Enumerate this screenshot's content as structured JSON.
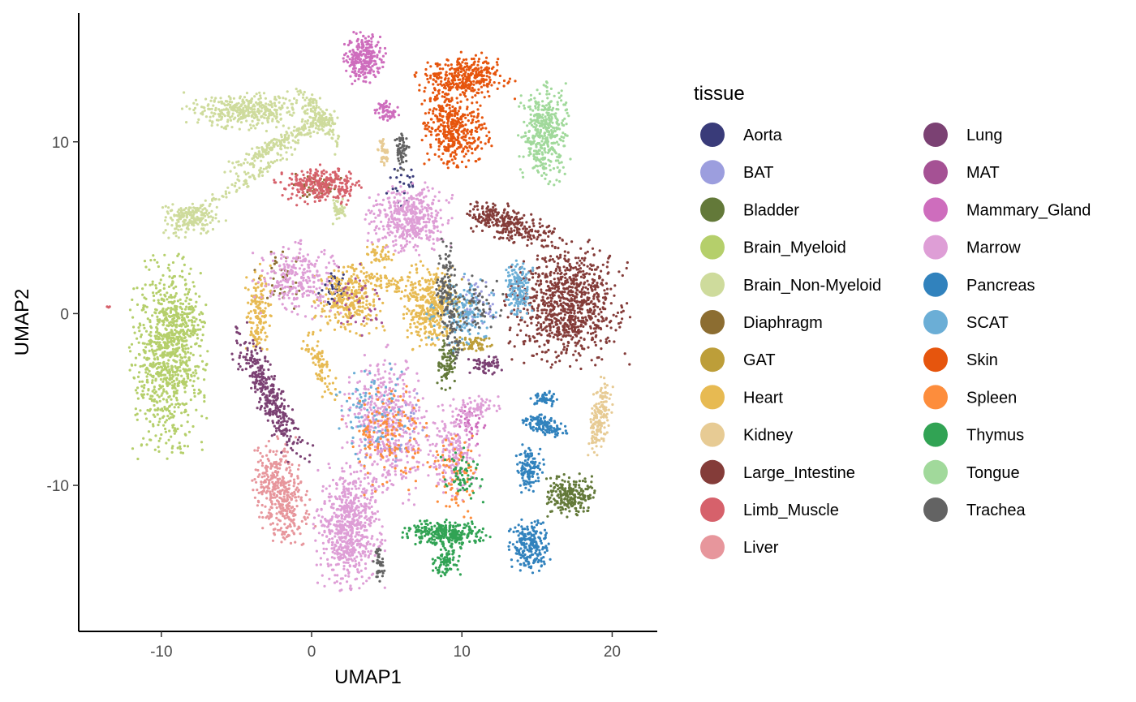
{
  "chart_data": {
    "type": "scatter",
    "title": "",
    "xlabel": "UMAP1",
    "ylabel": "UMAP2",
    "xlim": [
      -15.5,
      23
    ],
    "ylim": [
      -18.5,
      17.5
    ],
    "x_ticks": [
      -10,
      0,
      10,
      20
    ],
    "y_ticks": [
      -10,
      0,
      10
    ],
    "x_tick_labels": [
      "-10",
      "0",
      "10",
      "20"
    ],
    "y_tick_labels": [
      "-10",
      "0",
      "10"
    ],
    "grid": false,
    "legend": {
      "title": "tissue",
      "placement": "right",
      "columns": 2
    },
    "series": [
      {
        "name": "Aorta",
        "color": "#393b79",
        "clusters": [
          {
            "x": 1.5,
            "y": 1.5,
            "rx": 1.0,
            "ry": 1.2,
            "n": 40,
            "angle": 0
          },
          {
            "x": 6.0,
            "y": 7.5,
            "rx": 1.0,
            "ry": 1.2,
            "n": 25,
            "angle": 0
          }
        ]
      },
      {
        "name": "BAT",
        "color": "#9c9ede",
        "clusters": [
          {
            "x": 11.0,
            "y": 0.5,
            "rx": 1.5,
            "ry": 1.5,
            "n": 40,
            "angle": 0
          },
          {
            "x": 5.5,
            "y": -6.5,
            "rx": 2.0,
            "ry": 2.5,
            "n": 40,
            "angle": 0
          }
        ]
      },
      {
        "name": "Bladder",
        "color": "#637939",
        "clusters": [
          {
            "x": 17.2,
            "y": -10.6,
            "rx": 1.4,
            "ry": 1.1,
            "n": 220,
            "angle": 0
          },
          {
            "x": 9.0,
            "y": -3.0,
            "rx": 0.7,
            "ry": 1.2,
            "n": 80,
            "angle": 0
          }
        ]
      },
      {
        "name": "Brain_Myeloid",
        "color": "#b5cf6b",
        "clusters": [
          {
            "x": -9.5,
            "y": -2.5,
            "rx": 2.2,
            "ry": 5.0,
            "n": 900,
            "angle": 0
          },
          {
            "x": -8.5,
            "y": -0.5,
            "rx": 1.3,
            "ry": 1.2,
            "n": 80,
            "angle": 0
          }
        ]
      },
      {
        "name": "Brain_Non-Myeloid",
        "color": "#cedb9c",
        "clusters": [
          {
            "x": -4.5,
            "y": 11.8,
            "rx": 3.8,
            "ry": 1.0,
            "n": 350,
            "angle": 0
          },
          {
            "x": -8.0,
            "y": 5.6,
            "rx": 2.0,
            "ry": 1.0,
            "n": 200,
            "angle": 0
          },
          {
            "x": -2.0,
            "y": 10.0,
            "rx": 3.5,
            "ry": 0.5,
            "n": 200,
            "angle": 25
          },
          {
            "x": 0.5,
            "y": 11.5,
            "rx": 2.0,
            "ry": 0.6,
            "n": 150,
            "angle": -50
          },
          {
            "x": -4.0,
            "y": 8.0,
            "rx": 3.0,
            "ry": 0.4,
            "n": 80,
            "angle": 30
          },
          {
            "x": 1.8,
            "y": 6.0,
            "rx": 0.5,
            "ry": 0.8,
            "n": 40,
            "angle": 0
          }
        ]
      },
      {
        "name": "Diaphragm",
        "color": "#8c6d31",
        "clusters": [
          {
            "x": 0.2,
            "y": 7.5,
            "rx": 1.5,
            "ry": 0.7,
            "n": 50,
            "angle": 0
          },
          {
            "x": -2.0,
            "y": 2.0,
            "rx": 1.5,
            "ry": 1.5,
            "n": 40,
            "angle": 0
          }
        ]
      },
      {
        "name": "GAT",
        "color": "#bd9e39",
        "clusters": [
          {
            "x": 11.0,
            "y": -1.8,
            "rx": 1.2,
            "ry": 0.5,
            "n": 60,
            "angle": 0
          },
          {
            "x": 9.5,
            "y": 0.5,
            "rx": 1.2,
            "ry": 1.5,
            "n": 40,
            "angle": 0
          }
        ]
      },
      {
        "name": "Heart",
        "color": "#e7ba52",
        "clusters": [
          {
            "x": 7.8,
            "y": 0.5,
            "rx": 1.6,
            "ry": 2.2,
            "n": 350,
            "angle": 0
          },
          {
            "x": 2.5,
            "y": 0.8,
            "rx": 2.0,
            "ry": 1.8,
            "n": 300,
            "angle": 0
          },
          {
            "x": -3.5,
            "y": 0.0,
            "rx": 0.8,
            "ry": 2.5,
            "n": 150,
            "angle": 0
          },
          {
            "x": 0.5,
            "y": -3.0,
            "rx": 0.6,
            "ry": 2.0,
            "n": 80,
            "angle": 25
          },
          {
            "x": 4.5,
            "y": 3.5,
            "rx": 1.0,
            "ry": 0.5,
            "n": 40,
            "angle": 0
          },
          {
            "x": 5.0,
            "y": 1.8,
            "rx": 2.0,
            "ry": 0.5,
            "n": 60,
            "angle": -20
          }
        ]
      },
      {
        "name": "Kidney",
        "color": "#e7cb94",
        "clusters": [
          {
            "x": 19.2,
            "y": -6.0,
            "rx": 0.6,
            "ry": 2.0,
            "n": 160,
            "angle": -10
          },
          {
            "x": 4.8,
            "y": 9.5,
            "rx": 0.4,
            "ry": 0.8,
            "n": 40,
            "angle": 0
          }
        ]
      },
      {
        "name": "Large_Intestine",
        "color": "#843c39",
        "clusters": [
          {
            "x": 17.0,
            "y": 0.5,
            "rx": 3.5,
            "ry": 3.2,
            "n": 900,
            "angle": 0
          },
          {
            "x": 13.5,
            "y": 5.0,
            "rx": 3.0,
            "ry": 0.8,
            "n": 200,
            "angle": -10
          },
          {
            "x": 12.0,
            "y": 5.8,
            "rx": 1.5,
            "ry": 0.6,
            "n": 80,
            "angle": 0
          }
        ]
      },
      {
        "name": "Limb_Muscle",
        "color": "#d6616b",
        "clusters": [
          {
            "x": 0.5,
            "y": 7.5,
            "rx": 2.5,
            "ry": 1.0,
            "n": 280,
            "angle": 0
          },
          {
            "x": -13.5,
            "y": 0.4,
            "rx": 0.1,
            "ry": 0.1,
            "n": 3,
            "angle": 0
          }
        ]
      },
      {
        "name": "Liver",
        "color": "#e7969c",
        "clusters": [
          {
            "x": -2.0,
            "y": -10.5,
            "rx": 1.5,
            "ry": 2.8,
            "n": 400,
            "angle": 15
          }
        ]
      },
      {
        "name": "Lung",
        "color": "#7b4173",
        "clusters": [
          {
            "x": -2.8,
            "y": -4.8,
            "rx": 0.9,
            "ry": 4.0,
            "n": 350,
            "angle": 30
          },
          {
            "x": 11.5,
            "y": -3.0,
            "rx": 1.0,
            "ry": 0.5,
            "n": 60,
            "angle": 0
          }
        ]
      },
      {
        "name": "MAT",
        "color": "#a55194",
        "clusters": [
          {
            "x": 3.0,
            "y": 1.0,
            "rx": 2.0,
            "ry": 2.0,
            "n": 40,
            "angle": 0
          }
        ]
      },
      {
        "name": "Mammary_Gland",
        "color": "#ce6dbd",
        "clusters": [
          {
            "x": 3.5,
            "y": 14.9,
            "rx": 1.2,
            "ry": 1.3,
            "n": 250,
            "angle": 0
          },
          {
            "x": 5.0,
            "y": 11.8,
            "rx": 0.8,
            "ry": 0.6,
            "n": 60,
            "angle": 0
          },
          {
            "x": 10.5,
            "y": -6.5,
            "rx": 1.0,
            "ry": 1.0,
            "n": 40,
            "angle": 0
          }
        ]
      },
      {
        "name": "Marrow",
        "color": "#de9ed6",
        "clusters": [
          {
            "x": 6.5,
            "y": 5.5,
            "rx": 2.5,
            "ry": 1.8,
            "n": 450,
            "angle": 0
          },
          {
            "x": 2.5,
            "y": -12.5,
            "rx": 2.0,
            "ry": 3.2,
            "n": 650,
            "angle": 0
          },
          {
            "x": 5.0,
            "y": -6.5,
            "rx": 2.5,
            "ry": 4.0,
            "n": 500,
            "angle": 0
          },
          {
            "x": 9.5,
            "y": -8.0,
            "rx": 1.5,
            "ry": 2.5,
            "n": 200,
            "angle": 0
          },
          {
            "x": -1.0,
            "y": 2.0,
            "rx": 2.5,
            "ry": 2.0,
            "n": 250,
            "angle": 0
          },
          {
            "x": 11.0,
            "y": -5.5,
            "rx": 1.5,
            "ry": 0.6,
            "n": 60,
            "angle": 0
          }
        ]
      },
      {
        "name": "Pancreas",
        "color": "#3182bd",
        "clusters": [
          {
            "x": 14.5,
            "y": -13.5,
            "rx": 1.2,
            "ry": 1.4,
            "n": 220,
            "angle": 0
          },
          {
            "x": 14.5,
            "y": -9.0,
            "rx": 0.8,
            "ry": 1.2,
            "n": 120,
            "angle": 0
          },
          {
            "x": 15.5,
            "y": -6.5,
            "rx": 1.5,
            "ry": 0.5,
            "n": 120,
            "angle": -10
          },
          {
            "x": 15.5,
            "y": -5.0,
            "rx": 0.8,
            "ry": 0.4,
            "n": 50,
            "angle": 0
          }
        ]
      },
      {
        "name": "SCAT",
        "color": "#6baed6",
        "clusters": [
          {
            "x": 13.8,
            "y": 1.5,
            "rx": 0.8,
            "ry": 1.5,
            "n": 150,
            "angle": 0
          },
          {
            "x": 10.0,
            "y": 0.0,
            "rx": 2.0,
            "ry": 2.0,
            "n": 150,
            "angle": 0
          },
          {
            "x": 4.0,
            "y": -6.0,
            "rx": 2.5,
            "ry": 3.0,
            "n": 100,
            "angle": 0
          }
        ]
      },
      {
        "name": "Skin",
        "color": "#e6550d",
        "clusters": [
          {
            "x": 10.2,
            "y": 13.8,
            "rx": 2.8,
            "ry": 1.2,
            "n": 350,
            "angle": 0
          },
          {
            "x": 9.6,
            "y": 10.5,
            "rx": 2.0,
            "ry": 1.8,
            "n": 350,
            "angle": 0
          },
          {
            "x": 8.5,
            "y": 12.0,
            "rx": 1.0,
            "ry": 1.5,
            "n": 60,
            "angle": 0
          }
        ]
      },
      {
        "name": "Spleen",
        "color": "#fd8d3c",
        "clusters": [
          {
            "x": 5.0,
            "y": -7.0,
            "rx": 2.5,
            "ry": 3.0,
            "n": 150,
            "angle": 0
          },
          {
            "x": 9.5,
            "y": -9.0,
            "rx": 1.5,
            "ry": 2.5,
            "n": 80,
            "angle": 0
          }
        ]
      },
      {
        "name": "Thymus",
        "color": "#31a354",
        "clusters": [
          {
            "x": 9.0,
            "y": -12.8,
            "rx": 2.5,
            "ry": 0.7,
            "n": 280,
            "angle": 0
          },
          {
            "x": 9.0,
            "y": -14.5,
            "rx": 0.8,
            "ry": 0.8,
            "n": 80,
            "angle": 0
          },
          {
            "x": 10.0,
            "y": -9.5,
            "rx": 1.2,
            "ry": 1.5,
            "n": 60,
            "angle": 0
          }
        ]
      },
      {
        "name": "Tongue",
        "color": "#a1d99b",
        "clusters": [
          {
            "x": 15.5,
            "y": 10.5,
            "rx": 1.5,
            "ry": 2.6,
            "n": 400,
            "angle": 0
          }
        ]
      },
      {
        "name": "Trachea",
        "color": "#636363",
        "clusters": [
          {
            "x": 9.0,
            "y": 1.5,
            "rx": 0.6,
            "ry": 2.5,
            "n": 120,
            "angle": 0
          },
          {
            "x": 6.0,
            "y": 9.5,
            "rx": 0.4,
            "ry": 1.0,
            "n": 60,
            "angle": 0
          },
          {
            "x": 11.0,
            "y": 0.5,
            "rx": 1.5,
            "ry": 1.5,
            "n": 60,
            "angle": 0
          },
          {
            "x": 4.5,
            "y": -14.5,
            "rx": 0.4,
            "ry": 1.0,
            "n": 40,
            "angle": 0
          },
          {
            "x": 9.5,
            "y": -1.5,
            "rx": 0.5,
            "ry": 1.5,
            "n": 40,
            "angle": 0
          }
        ]
      }
    ]
  }
}
